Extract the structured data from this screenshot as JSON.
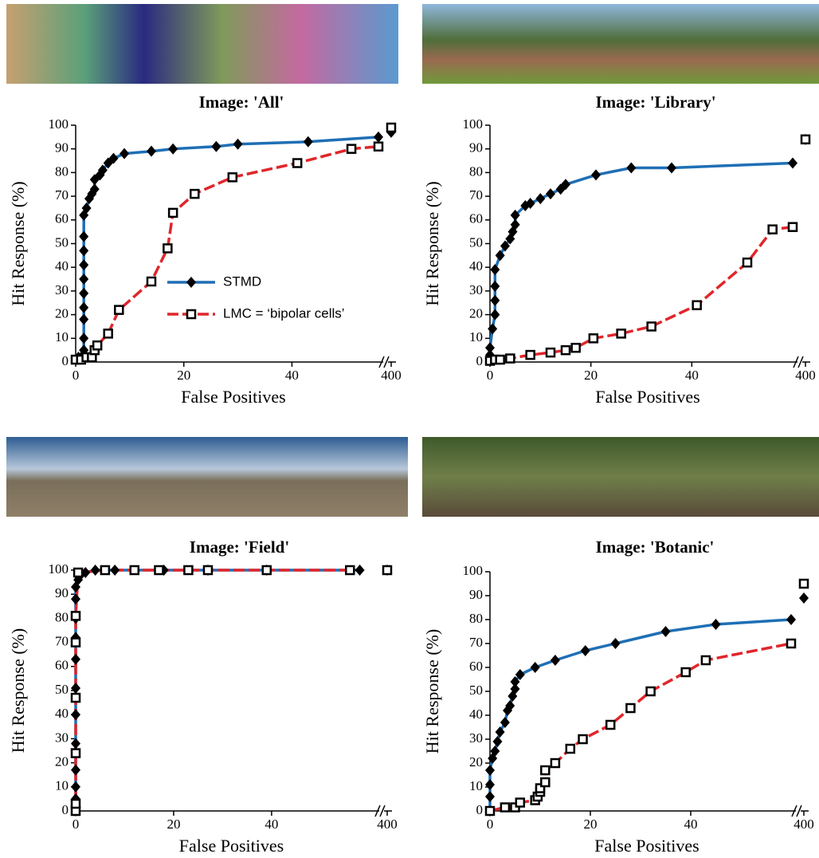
{
  "chart_data": [
    {
      "type": "line",
      "title": "Image: 'All'",
      "x_label": "False Positives",
      "y_label": "Hit Response (%)",
      "xlim": [
        0,
        56
      ],
      "ylim": [
        0,
        100
      ],
      "x_break": true,
      "legend": "center-right",
      "xticks": [
        0,
        20,
        40,
        {
          "value": 400,
          "label": "400"
        }
      ],
      "yticks": [
        0,
        10,
        20,
        30,
        40,
        50,
        60,
        70,
        80,
        90,
        100
      ],
      "series": [
        {
          "name": "STMD",
          "color": "#1f6fb5",
          "marker": "diamond",
          "x": [
            0,
            0.5,
            1,
            1.5,
            1.5,
            1.5,
            1.5,
            1.5,
            1.5,
            1.5,
            1.5,
            1.5,
            1.5,
            2,
            2.5,
            3,
            3.5,
            3.5,
            4.5,
            5,
            6,
            7,
            9,
            14,
            18,
            26,
            30,
            43,
            56
          ],
          "values": [
            1,
            2,
            2,
            5,
            10,
            18,
            23,
            29,
            35,
            41,
            47,
            53,
            62,
            65,
            69,
            71,
            73,
            77,
            79,
            81,
            84,
            86,
            88,
            89,
            90,
            91,
            92,
            93,
            95
          ],
          "end_value": 97
        },
        {
          "name": "LMC = ‘bipolar cells’",
          "color": "#e0262b",
          "marker": "square",
          "x": [
            0,
            1,
            2,
            3,
            3.5,
            4,
            6,
            8,
            14,
            17,
            18,
            22,
            29,
            41,
            51,
            56
          ],
          "values": [
            1,
            1,
            2,
            2,
            5,
            7,
            12,
            22,
            34,
            48,
            63,
            71,
            78,
            84,
            90,
            91
          ],
          "end_value": 99
        }
      ]
    },
    {
      "type": "line",
      "title": "Image: 'Library'",
      "x_label": "False Positives",
      "y_label": "Hit Response (%)",
      "xlim": [
        0,
        60
      ],
      "ylim": [
        0,
        100
      ],
      "x_break": true,
      "xticks": [
        0,
        20,
        40,
        {
          "value": 400,
          "label": "400"
        }
      ],
      "yticks": [
        0,
        10,
        20,
        30,
        40,
        50,
        60,
        70,
        80,
        90,
        100
      ],
      "series": [
        {
          "color": "#1f6fb5",
          "marker": "diamond",
          "x": [
            0,
            0,
            0.5,
            1,
            1,
            1,
            1,
            2,
            3,
            4,
            4.5,
            5,
            5,
            7,
            8,
            10,
            12,
            14,
            15,
            21,
            28,
            36,
            60
          ],
          "values": [
            3,
            6,
            14,
            20,
            26,
            32,
            39,
            45,
            49,
            52,
            55,
            58,
            62,
            66,
            67,
            69,
            71,
            73,
            75,
            79,
            82,
            82,
            84
          ],
          "end_value": 94
        },
        {
          "color": "#e0262b",
          "marker": "square",
          "x": [
            0,
            1,
            2,
            4,
            8,
            12,
            15,
            17,
            20.5,
            26,
            32,
            41,
            51,
            56,
            60
          ],
          "values": [
            0.5,
            1,
            1,
            1.5,
            3,
            4,
            5,
            6,
            10,
            12,
            15,
            24,
            42,
            56,
            57
          ],
          "end_value": 94
        }
      ]
    },
    {
      "type": "line",
      "title": "Image: 'Field'",
      "x_label": "False Positives",
      "y_label": "Hit Response (%)",
      "xlim": [
        0,
        61
      ],
      "ylim": [
        0,
        100
      ],
      "x_break": true,
      "xticks": [
        0,
        20,
        40,
        {
          "value": 400,
          "label": "400"
        }
      ],
      "yticks": [
        0,
        10,
        20,
        30,
        40,
        50,
        60,
        70,
        80,
        90,
        100
      ],
      "series": [
        {
          "color": "#1f6fb5",
          "marker": "diamond",
          "x": [
            0,
            0,
            0,
            0,
            0,
            0,
            0,
            0,
            0,
            0,
            0,
            0,
            0.5,
            1,
            2,
            4,
            8,
            18,
            27,
            39,
            58
          ],
          "values": [
            0,
            5,
            10,
            17,
            28,
            40,
            51,
            63,
            72,
            80,
            88,
            93,
            96,
            98,
            99,
            100,
            100,
            100,
            100,
            100,
            100
          ],
          "end_value": 100
        },
        {
          "color": "#e0262b",
          "marker": "square",
          "x": [
            0,
            0,
            0,
            0,
            0,
            0,
            0.5,
            6,
            12,
            17,
            23,
            27,
            39,
            56
          ],
          "values": [
            0,
            3,
            24,
            47,
            70,
            81,
            99,
            100,
            100,
            100,
            100,
            100,
            100,
            100
          ],
          "end_value": 100
        }
      ]
    },
    {
      "type": "line",
      "title": "Image: 'Botanic'",
      "x_label": "False Positives",
      "y_label": "Hit Response (%)",
      "xlim": [
        0,
        60
      ],
      "ylim": [
        0,
        100
      ],
      "x_break": true,
      "xticks": [
        0,
        20,
        40,
        {
          "value": 400,
          "label": "400"
        }
      ],
      "yticks": [
        0,
        10,
        20,
        30,
        40,
        50,
        60,
        70,
        80,
        90,
        100
      ],
      "series": [
        {
          "color": "#1f6fb5",
          "marker": "diamond",
          "x": [
            0,
            0,
            0,
            0,
            0.5,
            1,
            1.5,
            2,
            3,
            3.5,
            4,
            4.5,
            5,
            5,
            6,
            9,
            13,
            19,
            25,
            35,
            45,
            60
          ],
          "values": [
            0,
            6,
            11,
            17,
            22,
            25,
            29,
            33,
            37,
            42,
            44,
            48,
            51,
            54,
            57,
            60,
            63,
            67,
            70,
            75,
            78,
            80
          ],
          "end_value": 89
        },
        {
          "color": "#e0262b",
          "marker": "square",
          "x": [
            0,
            3,
            5,
            6,
            9,
            9.5,
            10,
            10,
            11,
            11,
            13,
            16,
            18.5,
            24,
            28,
            32,
            39,
            43,
            60
          ],
          "values": [
            0,
            1.5,
            1.5,
            3.5,
            4.5,
            6,
            8,
            9.5,
            12,
            17,
            20,
            26,
            30,
            36,
            43,
            50,
            58,
            63,
            70
          ],
          "end_value": 95
        }
      ]
    }
  ]
}
